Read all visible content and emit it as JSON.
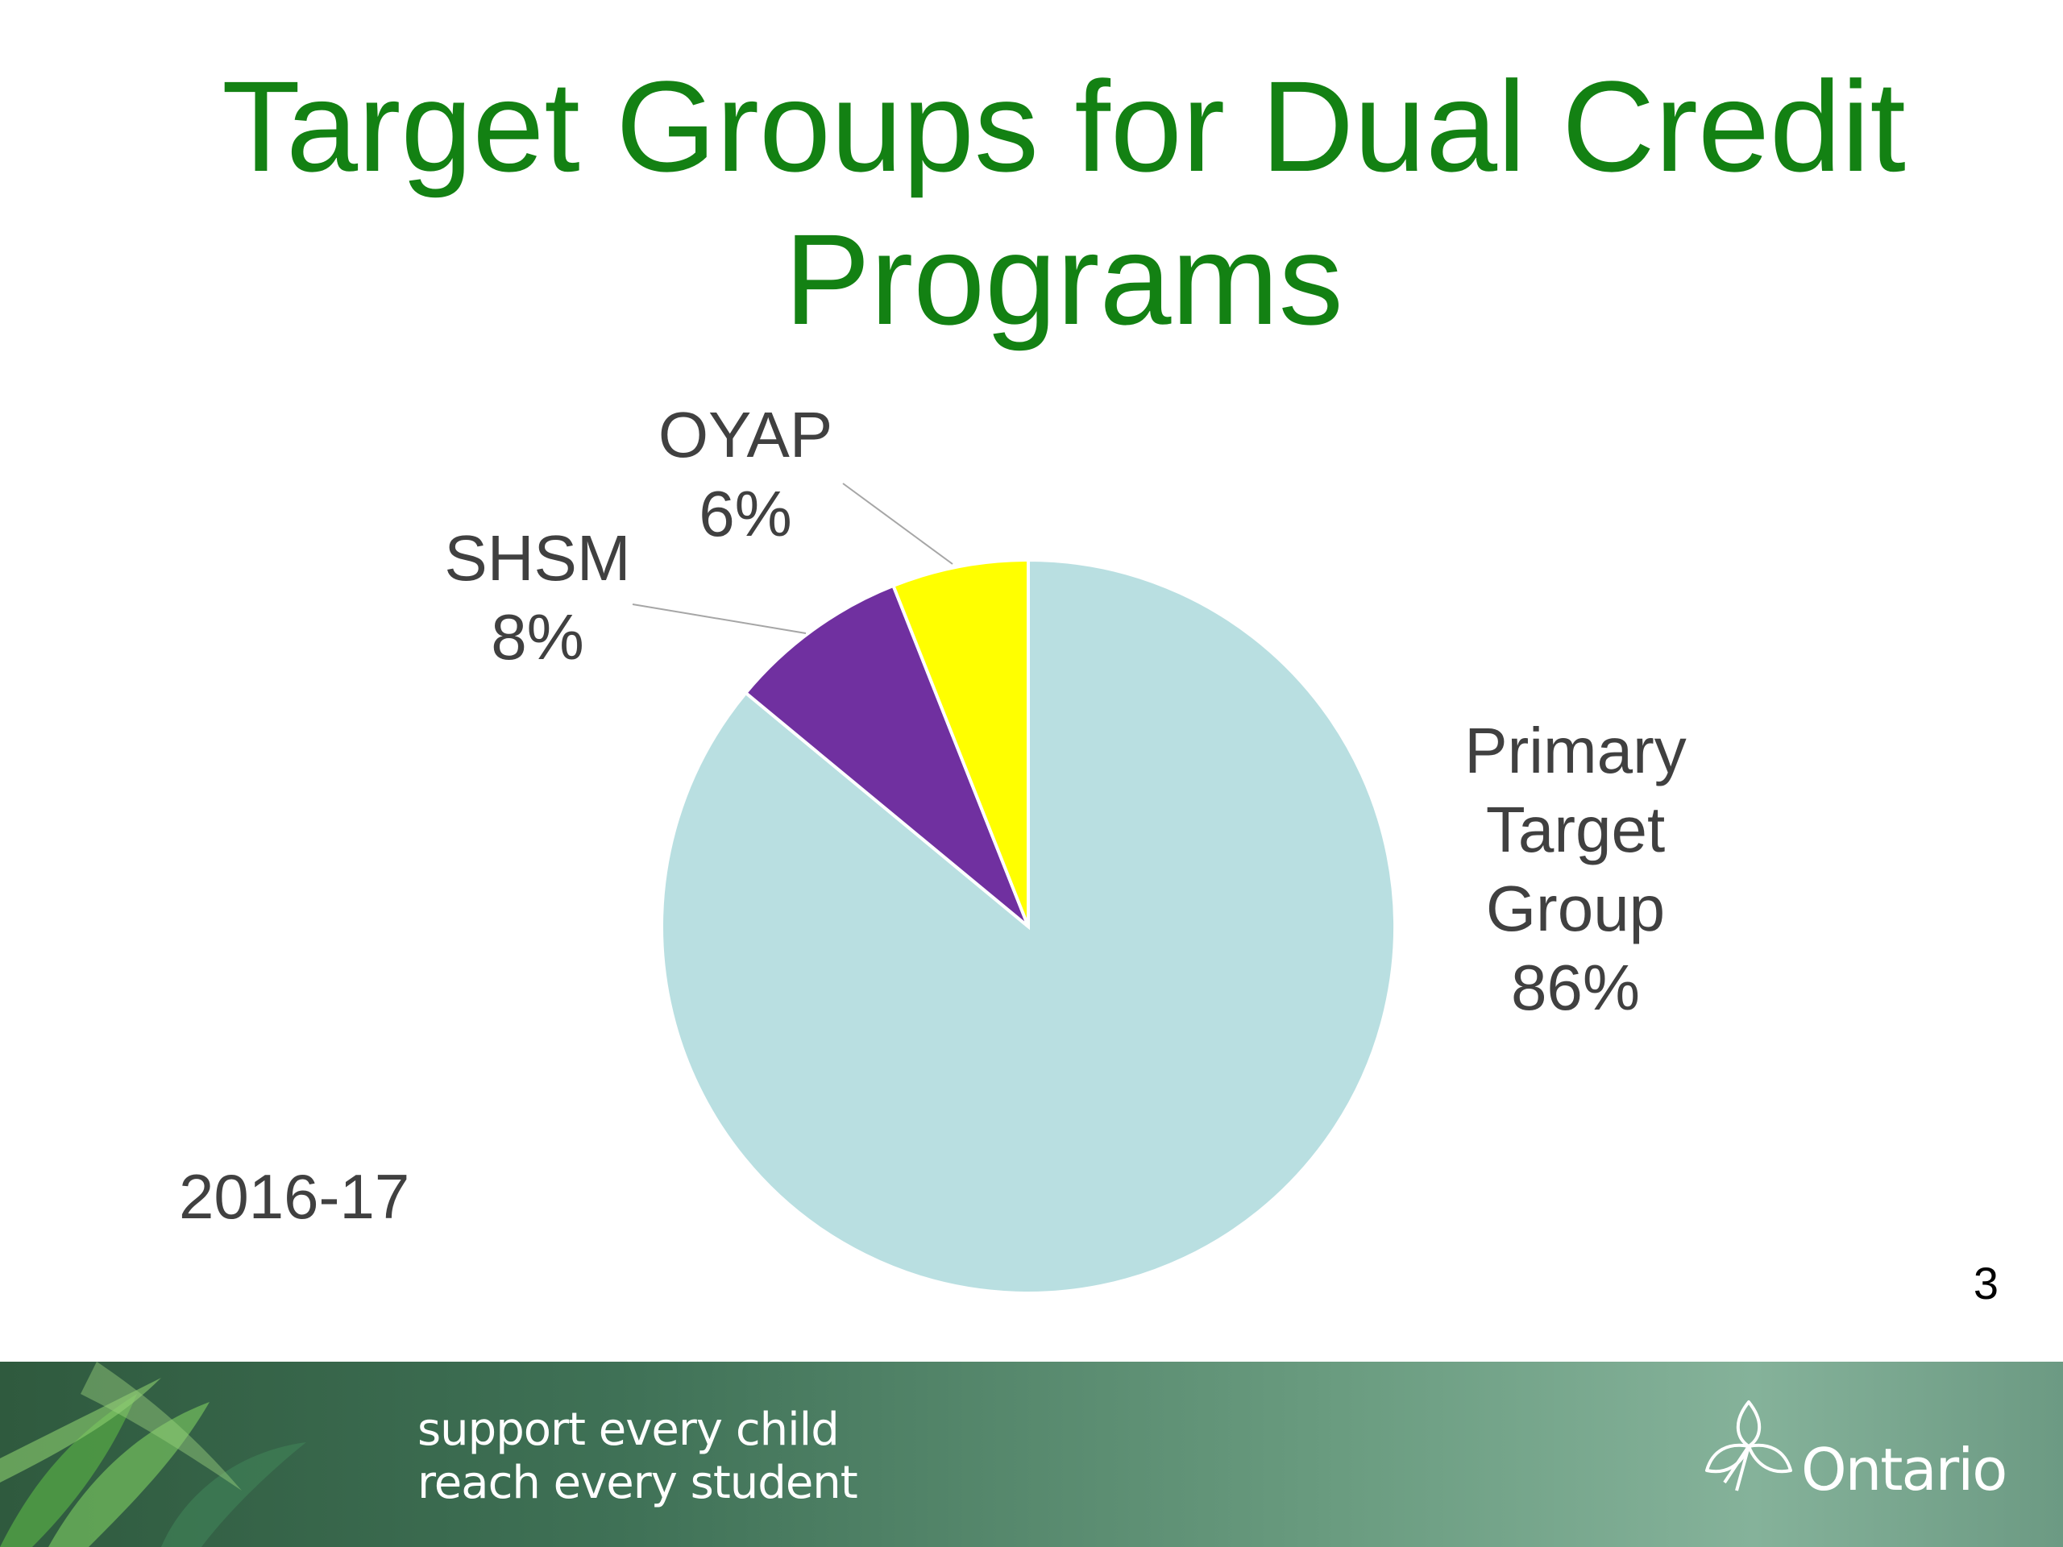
{
  "slide": {
    "title_lines": [
      "Target Groups for Dual Credit",
      "Programs"
    ],
    "year": "2016-17",
    "page_number": "3"
  },
  "footer": {
    "tagline_lines": [
      "support every child",
      "reach every student"
    ],
    "logo_text": "Ontario",
    "logo_icon": "trillium-icon"
  },
  "chart_data": {
    "type": "pie",
    "title": "",
    "start_angle_deg": 0,
    "direction": "clockwise",
    "slices": [
      {
        "label_lines": [
          "Primary",
          "Target",
          "Group"
        ],
        "value_label": "86%",
        "value": 86,
        "color": "#b9dfe1"
      },
      {
        "label_lines": [
          "SHSM"
        ],
        "value_label": "8%",
        "value": 8,
        "color": "#7030a0"
      },
      {
        "label_lines": [
          "OYAP"
        ],
        "value_label": "6%",
        "value": 6,
        "color": "#ffff00"
      }
    ],
    "legend": "none",
    "data_labels": "outside"
  },
  "colors": {
    "title": "#138113",
    "label_text": "#404040",
    "footer_dark": "#2f5a3e",
    "footer_light": "#85b29a"
  }
}
